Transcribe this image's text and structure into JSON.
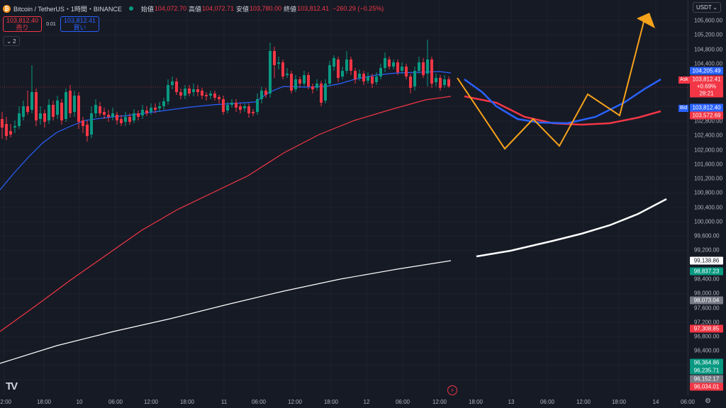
{
  "header": {
    "coin_glyph": "₿",
    "symbol": "Bitcoin / TetherUS・1時間・BINANCE",
    "ohlc": [
      {
        "label": "始値",
        "value": "104,072.70"
      },
      {
        "label": "高値",
        "value": "104,072.71"
      },
      {
        "label": "安値",
        "value": "103,780.00"
      },
      {
        "label": "終値",
        "value": "103,812.41"
      }
    ],
    "change": "−260.29 (−0.25%)"
  },
  "trade": {
    "sell_price": "103,812.40",
    "sell_label": "売り",
    "spread": "0.01",
    "buy_price": "103,812.41",
    "buy_label": "買い"
  },
  "indicator_toggle": {
    "count": "2"
  },
  "currency": "USDT",
  "price_ticks": [
    "105,600.00",
    "105,200.00",
    "104,800.00",
    "104,400.00",
    "103,200.00",
    "102,800.00",
    "102,400.00",
    "102,000.00",
    "101,600.00",
    "101,200.00",
    "100,800.00",
    "100,400.00",
    "100,000.00",
    "99,600.00",
    "99,200.00",
    "98,400.00",
    "98,000.00",
    "97,600.00",
    "97,200.00",
    "96,800.00",
    "96,400.00",
    "96,000.00",
    "95,600.00"
  ],
  "price_labels": {
    "blue_ma": "104,205.49",
    "last": "103,812.41",
    "last_change": "+0.69%",
    "countdown": "28:21",
    "bid": "103,812.40",
    "red_ma": "103,572.69",
    "white_ma": "99,138.86",
    "g1": "98,837.23",
    "gray1": "98,073.04",
    "r1": "97,308.85",
    "g2": "96,364.86",
    "g3": "96,235.71",
    "gray2": "96,152.17",
    "r2": "96,034.01"
  },
  "tags": {
    "ask": "Ask",
    "bid": "Bid"
  },
  "time_ticks": [
    "12:00",
    "18:00",
    "10",
    "06:00",
    "12:00",
    "18:00",
    "11",
    "06:00",
    "12:00",
    "18:00",
    "12",
    "06:00",
    "12:00",
    "18:00",
    "13",
    "06:00",
    "12:00",
    "18:00",
    "14",
    "06:00"
  ],
  "colors": {
    "up": "#089981",
    "down": "#f23645",
    "blue_ma": "#2962ff",
    "red_ma": "#f23645",
    "white_ma": "#ffffff",
    "projection": "#f7a21b",
    "background": "#161a25"
  },
  "logo": "TV"
}
